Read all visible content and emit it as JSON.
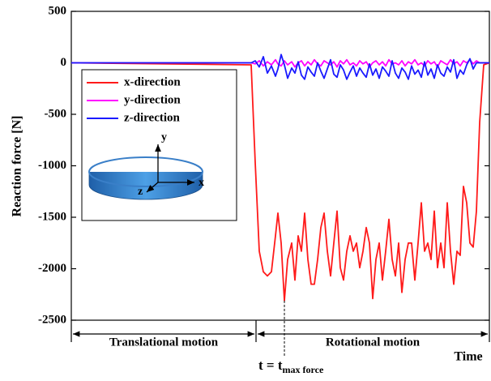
{
  "chart_data": {
    "type": "line",
    "ylabel": "Reaction force [N]",
    "xlabel": "Time",
    "xlim": [
      0,
      516
    ],
    "ylim": [
      -2500,
      500
    ],
    "yticks": [
      -2500,
      -2000,
      -1500,
      -1000,
      -500,
      0,
      500
    ],
    "legend": "upper left",
    "x": [
      0,
      222,
      227,
      232,
      237,
      242,
      247,
      252,
      255,
      259,
      263,
      267,
      272,
      276,
      280,
      284,
      288,
      292,
      296,
      300,
      304,
      308,
      312,
      316,
      320,
      324,
      328,
      332,
      336,
      340,
      344,
      348,
      352,
      356,
      360,
      364,
      368,
      372,
      376,
      380,
      384,
      388,
      392,
      396,
      400,
      404,
      408,
      412,
      416,
      420,
      424,
      428,
      432,
      436,
      440,
      444,
      448,
      452,
      456,
      460,
      464,
      468,
      472,
      476,
      480,
      484,
      488,
      492,
      496,
      500,
      504,
      509,
      516
    ],
    "series": [
      {
        "name": "x-direction",
        "color": "#ff1a1a",
        "values": [
          0,
          -20,
          -970,
          -1830,
          -2030,
          -2070,
          -2030,
          -1680,
          -1460,
          -1750,
          -2310,
          -1910,
          -1750,
          -2110,
          -1680,
          -1830,
          -1460,
          -1910,
          -2150,
          -2150,
          -1910,
          -1600,
          -1460,
          -1830,
          -2070,
          -1750,
          -1440,
          -1990,
          -2110,
          -1830,
          -1680,
          -1830,
          -1750,
          -1990,
          -1830,
          -1600,
          -1750,
          -2290,
          -1910,
          -1750,
          -2110,
          -1830,
          -1520,
          -1910,
          -2070,
          -1750,
          -2230,
          -1910,
          -1750,
          -1750,
          -2110,
          -1750,
          -1360,
          -1830,
          -1750,
          -1910,
          -1440,
          -1990,
          -1750,
          -1990,
          -1360,
          -1830,
          -2150,
          -1830,
          -1870,
          -1200,
          -1360,
          -1750,
          -1790,
          -1440,
          -580,
          -20,
          0
        ]
      },
      {
        "name": "y-direction",
        "color": "#ff00ff",
        "values": [
          0,
          0,
          -10,
          20,
          -30,
          10,
          -20,
          30,
          -10,
          -30,
          20,
          -20,
          10,
          -40,
          0,
          20,
          -30,
          10,
          -20,
          30,
          -10,
          -30,
          20,
          0,
          -20,
          10,
          -40,
          20,
          -10,
          30,
          -20,
          0,
          -30,
          20,
          -10,
          10,
          -40,
          0,
          20,
          -20,
          10,
          -30,
          30,
          -10,
          0,
          -20,
          20,
          -30,
          10,
          -10,
          30,
          -20,
          0,
          -30,
          20,
          -10,
          10,
          -40,
          20,
          0,
          -20,
          30,
          -10,
          10,
          -30,
          20,
          0,
          30,
          -10,
          20,
          0,
          0,
          0
        ]
      },
      {
        "name": "z-direction",
        "color": "#1a1aff",
        "values": [
          0,
          0,
          20,
          -40,
          60,
          -100,
          -30,
          -130,
          -60,
          80,
          -20,
          -150,
          -50,
          -100,
          10,
          -120,
          -160,
          -40,
          -90,
          -130,
          0,
          -80,
          -150,
          -60,
          30,
          -110,
          -140,
          -20,
          -70,
          -160,
          -90,
          -30,
          -130,
          -50,
          -100,
          -140,
          -10,
          -120,
          -60,
          -150,
          -40,
          -80,
          -130,
          20,
          -100,
          -150,
          -50,
          -90,
          -160,
          -30,
          -110,
          -70,
          -140,
          10,
          -120,
          -60,
          -150,
          -20,
          -100,
          -130,
          -40,
          -90,
          30,
          -150,
          -70,
          -110,
          -20,
          40,
          -60,
          0,
          0,
          0,
          0
        ]
      }
    ],
    "inset_labels": [
      "x",
      "y",
      "z"
    ],
    "annotations": [
      "Translational motion",
      "Rotational motion"
    ],
    "marker_label": "t = t",
    "marker_label_subscript": "max force"
  }
}
